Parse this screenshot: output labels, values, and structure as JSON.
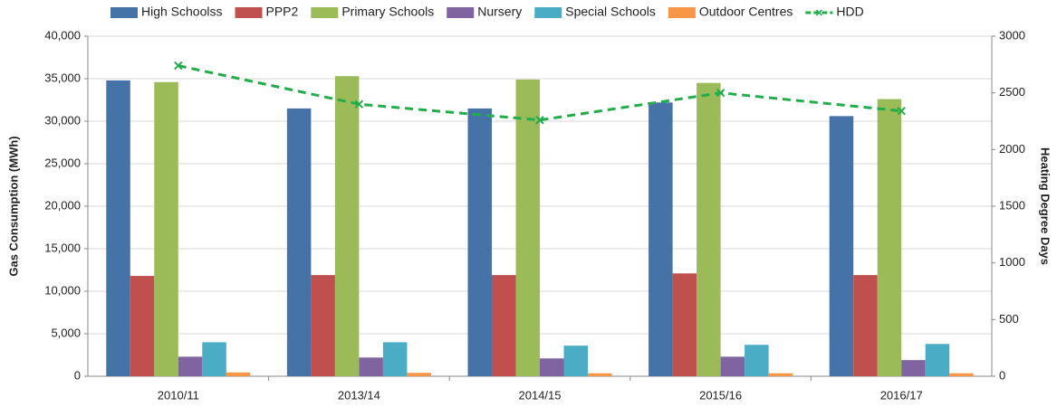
{
  "chart_data": {
    "type": "bar",
    "categories": [
      "2010/11",
      "2013/14",
      "2014/15",
      "2015/16",
      "2016/17"
    ],
    "series": [
      {
        "name": "High Schoolss",
        "color": "#4572a7",
        "values": [
          34800,
          31500,
          31500,
          32200,
          30600
        ]
      },
      {
        "name": "PPP2",
        "color": "#c0504d",
        "values": [
          11800,
          11900,
          11900,
          12100,
          11900
        ]
      },
      {
        "name": "Primary Schools",
        "color": "#9bbb59",
        "values": [
          34600,
          35300,
          34900,
          34500,
          32600
        ]
      },
      {
        "name": "Nursery",
        "color": "#8064a2",
        "values": [
          2300,
          2200,
          2100,
          2300,
          1900
        ]
      },
      {
        "name": "Special Schools",
        "color": "#4bacc6",
        "values": [
          4000,
          4000,
          3600,
          3700,
          3800
        ]
      },
      {
        "name": "Outdoor Centres",
        "color": "#f79646",
        "values": [
          450,
          400,
          350,
          350,
          350
        ]
      },
      {
        "name": "HDD",
        "color": "#22ac4a",
        "type": "line",
        "axis": "y2",
        "values": [
          2740,
          2400,
          2260,
          2500,
          2340
        ]
      }
    ],
    "ylabel": "Gas Consumption (MWh)",
    "y2label": "Heating Degree Days",
    "ylim": [
      0,
      40000
    ],
    "yticks": [
      0,
      {
        "value": 5000,
        "label": "5,000"
      },
      {
        "value": 10000,
        "label": "10,000"
      },
      {
        "value": 15000,
        "label": "15,000"
      },
      {
        "value": 20000,
        "label": "20,000"
      },
      {
        "value": 25000,
        "label": "25,000"
      },
      {
        "value": 30000,
        "label": "30,000"
      },
      {
        "value": 35000,
        "label": "35,000"
      },
      {
        "value": 40000,
        "label": "40,000"
      }
    ],
    "y2lim": [
      0,
      3000
    ],
    "y2ticks": [
      0,
      500,
      1000,
      1500,
      2000,
      2500,
      3000
    ],
    "grid": true,
    "legend": "top"
  }
}
